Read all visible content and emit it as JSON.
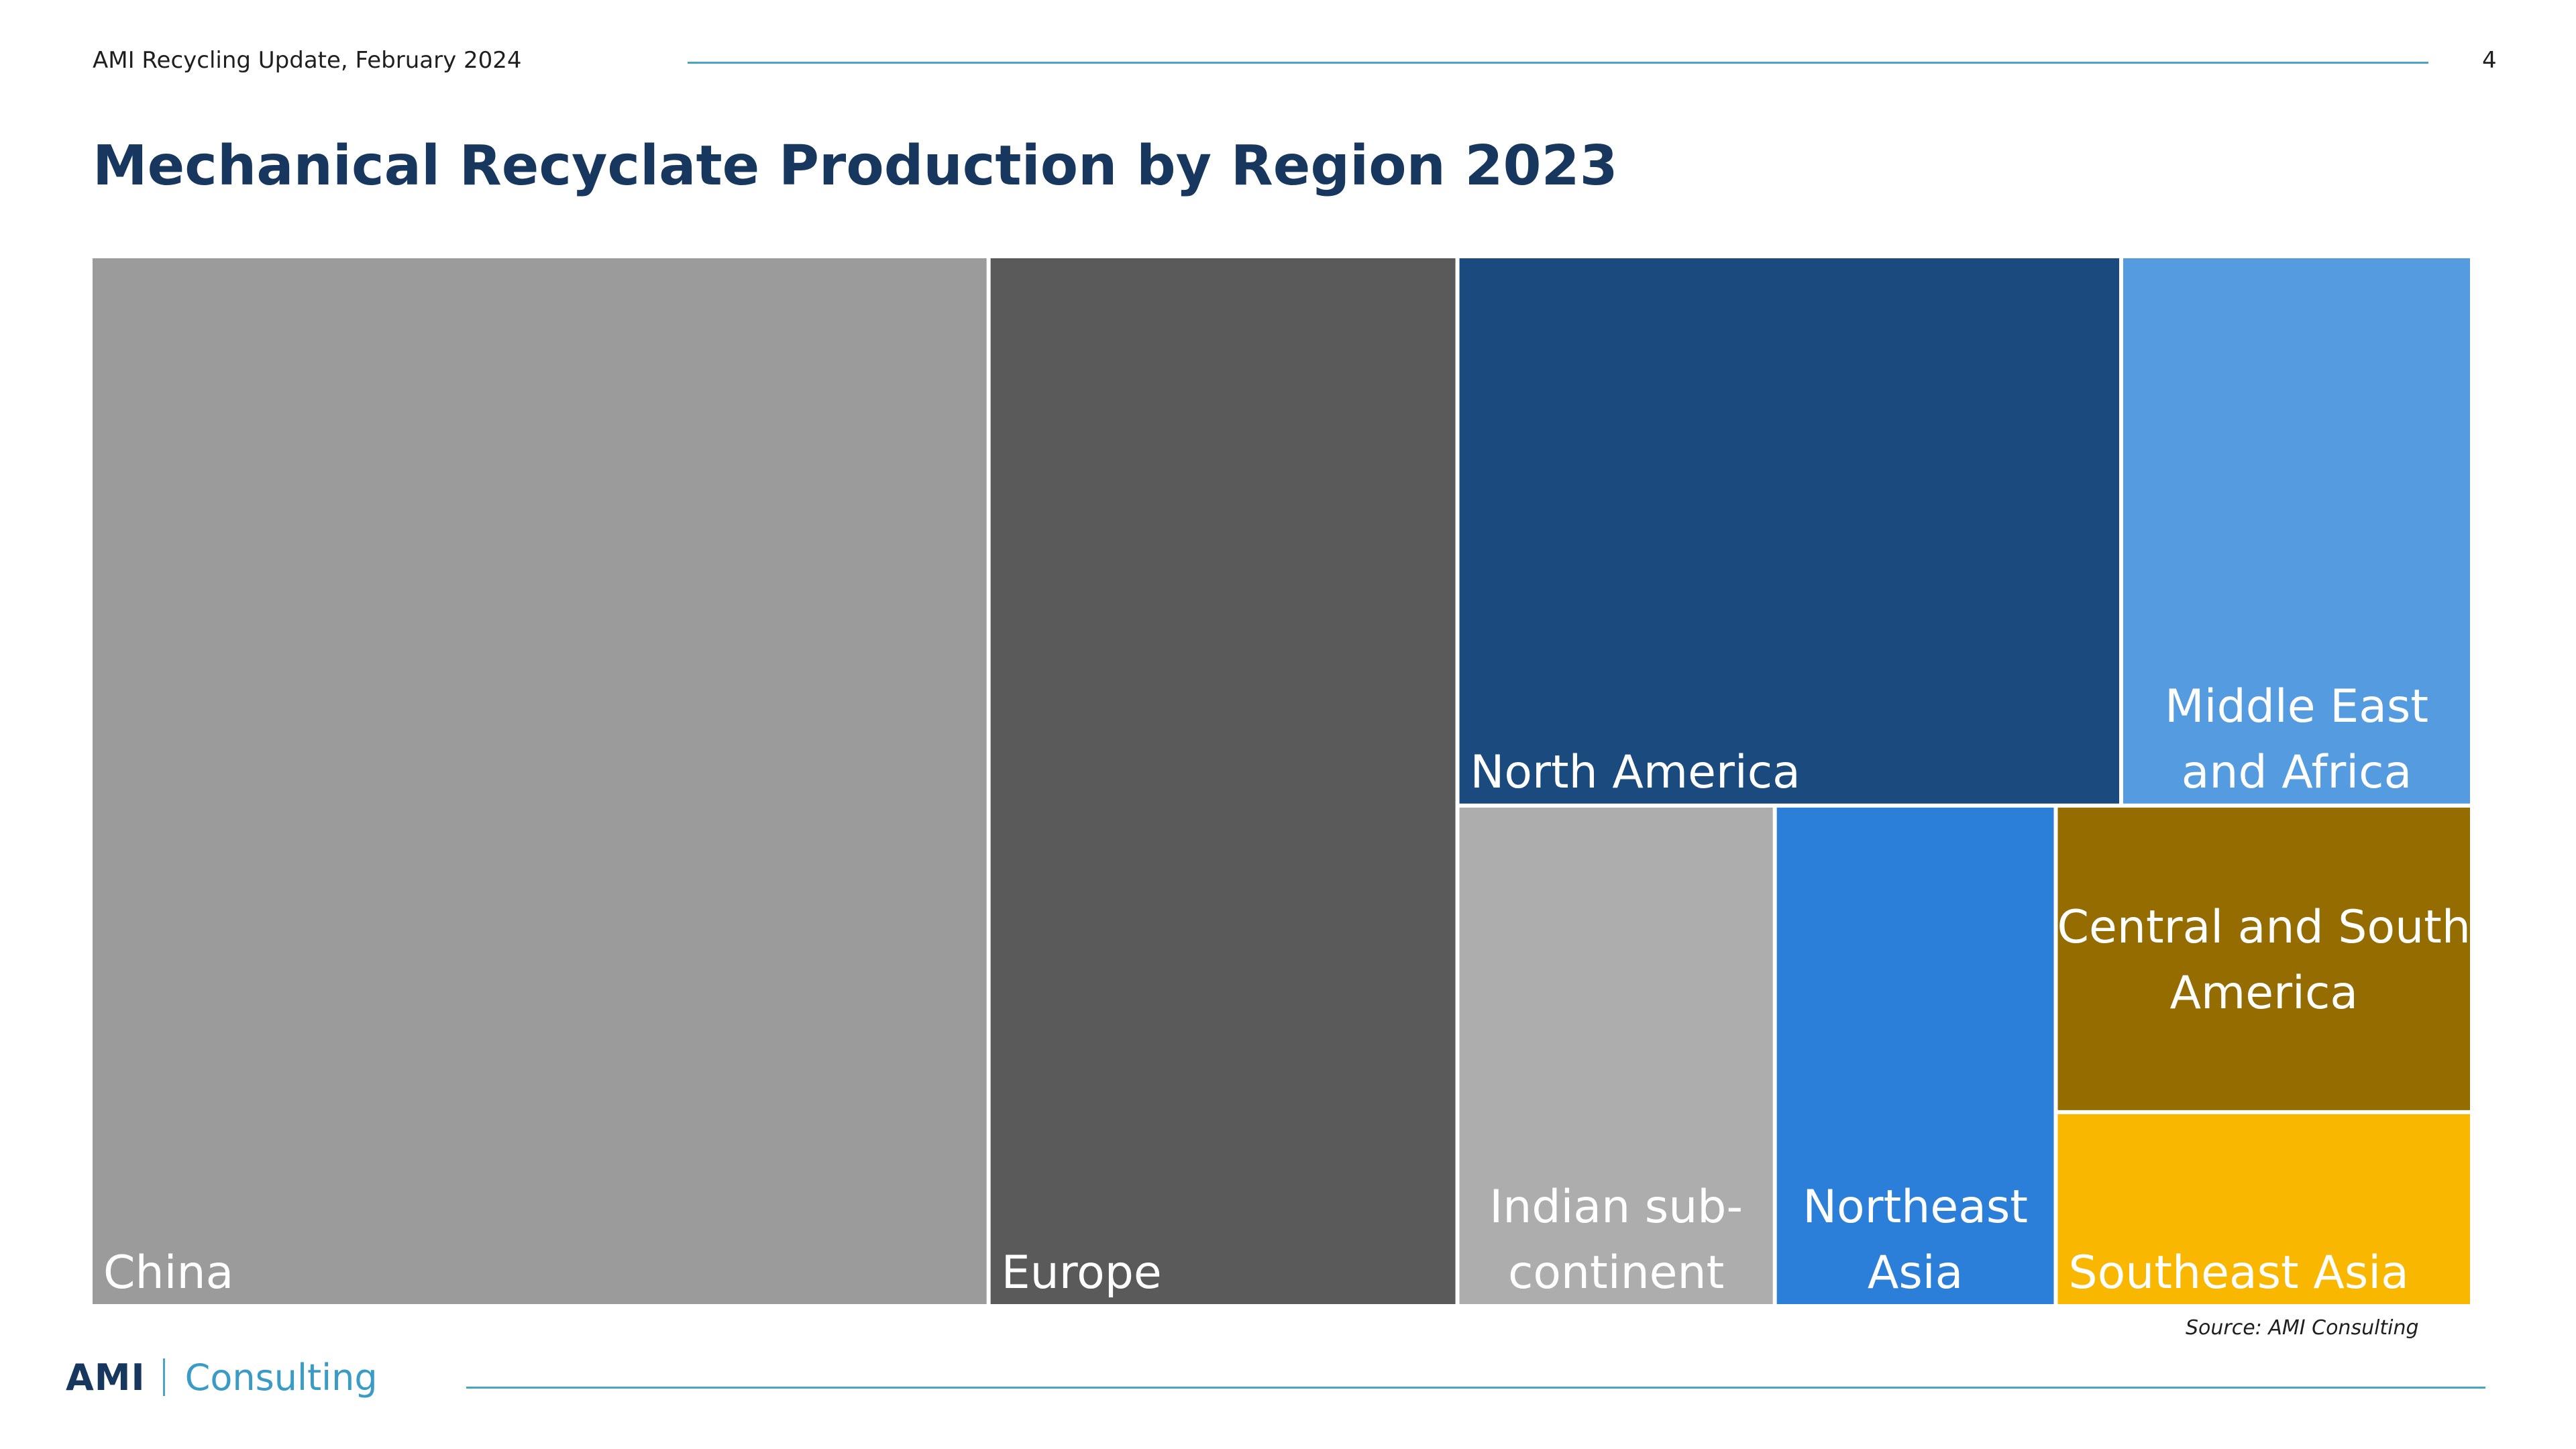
{
  "header": {
    "text": "AMI Recycling Update, February 2024",
    "page_number": "4"
  },
  "title": "Mechanical Recyclate Production by Region 2023",
  "chart_data": {
    "type": "treemap",
    "title": "Mechanical Recyclate Production by Region 2023",
    "unit": "",
    "items": [
      {
        "name": "China",
        "label_lines": [
          "China"
        ],
        "value": 36.2,
        "color": "#9b9b9b"
      },
      {
        "name": "Europe",
        "label_lines": [
          "Europe"
        ],
        "value": 18.9,
        "color": "#5a5a5a"
      },
      {
        "name": "North America",
        "label_lines": [
          "North America"
        ],
        "value": 14.0,
        "color": "#1a4a7e"
      },
      {
        "name": "Middle East and Africa",
        "label_lines": [
          "Middle East",
          "and Africa"
        ],
        "value": 7.4,
        "color": "#559be0"
      },
      {
        "name": "Indian sub-continent",
        "label_lines": [
          "Indian sub-",
          "continent"
        ],
        "value": 6.1,
        "color": "#adadad"
      },
      {
        "name": "Northeast Asia",
        "label_lines": [
          "Northeast",
          "Asia"
        ],
        "value": 5.4,
        "color": "#2b7fd9"
      },
      {
        "name": "Central and South America",
        "label_lines": [
          "Central and South",
          "America"
        ],
        "value": 4.9,
        "color": "#946c00"
      },
      {
        "name": "Southeast Asia",
        "label_lines": [
          "Southeast Asia"
        ],
        "value": 3.1,
        "color": "#f9b700"
      }
    ]
  },
  "source": "Source: AMI Consulting",
  "logo": {
    "brand": "AMI",
    "division": "Consulting"
  }
}
